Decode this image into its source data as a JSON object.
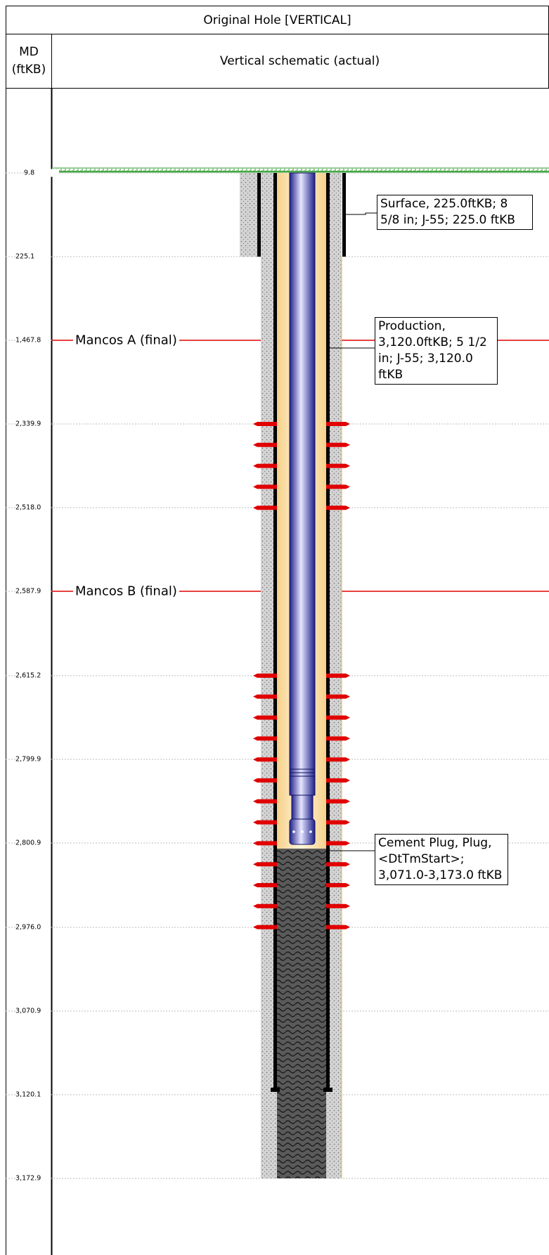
{
  "header": {
    "title": "Original Hole [VERTICAL]",
    "md_label_line1": "MD",
    "md_label_line2": "(ftKB)",
    "schematic_label": "Vertical schematic (actual)"
  },
  "depth_markers": [
    "9.8",
    "225.1",
    "1,467.8",
    "2,339.9",
    "2,518.0",
    "2,587.9",
    "2,615.2",
    "2,799.9",
    "2,800.9",
    "2,976.0",
    "3,070.9",
    "3,120.1",
    "3,172.9"
  ],
  "formations": [
    {
      "name": "Mancos A (final)",
      "depth": "1,467.8"
    },
    {
      "name": "Mancos B (final)",
      "depth": "2,587.9"
    }
  ],
  "callouts": {
    "surface": "Surface, 225.0ftKB; 8 5/8 in; J-55; 225.0 ftKB",
    "production": "Production, 3,120.0ftKB; 5 1/2 in; J-55; 3,120.0 ftKB",
    "cement_plug": "Cement Plug, Plug, <DtTmStart>; 3,071.0-3,173.0 ftKB"
  },
  "colors": {
    "ground": "#2e9a2e",
    "tubing": "#3a3aa8",
    "fluid": "#fde7b4",
    "perforation": "#e00000",
    "formation_line": "#e00000",
    "cement": "#c8c8c8"
  }
}
